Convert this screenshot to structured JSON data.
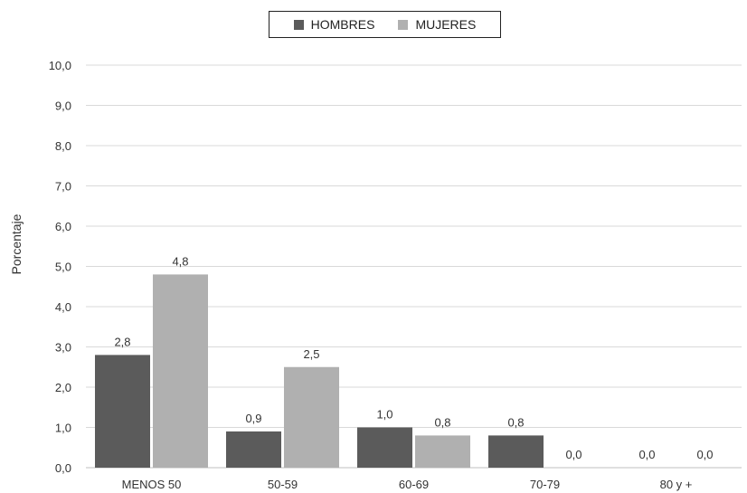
{
  "chart_data": {
    "type": "bar",
    "categories": [
      "MENOS 50",
      "50-59",
      "60-69",
      "70-79",
      "80 y +"
    ],
    "series": [
      {
        "name": "HOMBRES",
        "color": "#5b5b5b",
        "values": [
          2.8,
          0.9,
          1.0,
          0.8,
          0.0
        ],
        "labels": [
          "2,8",
          "0,9",
          "1,0",
          "0,8",
          "0,0"
        ]
      },
      {
        "name": "MUJERES",
        "color": "#b0b0b0",
        "values": [
          4.8,
          2.5,
          0.8,
          0.0,
          0.0
        ],
        "labels": [
          "4,8",
          "2,5",
          "0,8",
          "0,0",
          "0,0"
        ]
      }
    ],
    "ylabel": "Porcentaje",
    "xlabel": "",
    "ylim": [
      0,
      10
    ],
    "yticks": [
      "0,0",
      "1,0",
      "2,0",
      "3,0",
      "4,0",
      "5,0",
      "6,0",
      "7,0",
      "8,0",
      "9,0",
      "10,0"
    ],
    "grid": true,
    "legend_position": "top-center"
  }
}
